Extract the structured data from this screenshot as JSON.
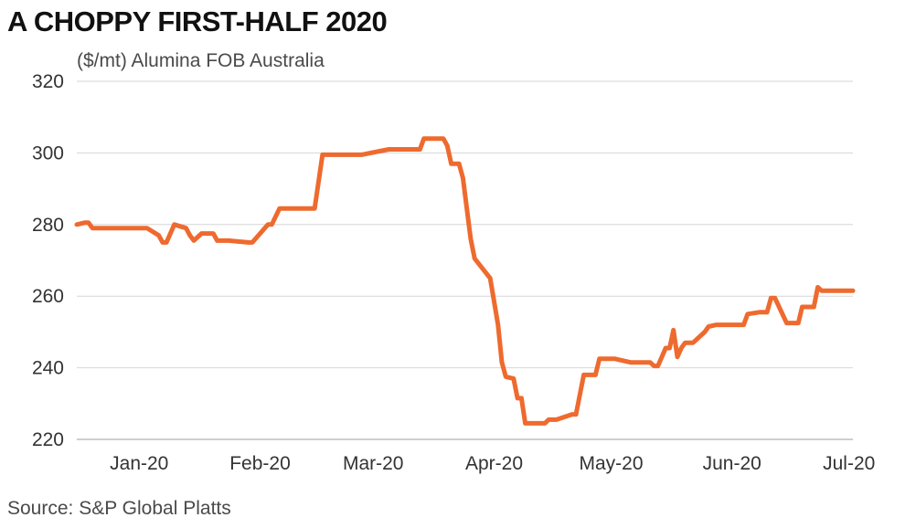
{
  "title": "A CHOPPY FIRST-HALF 2020",
  "source": "Source: S&P Global Platts",
  "chart_data": {
    "type": "line",
    "ylabel": "($/mt) Alumina FOB Australia",
    "ylim": [
      220,
      320
    ],
    "yticks": [
      "220",
      "240",
      "260",
      "280",
      "300",
      "320"
    ],
    "xlim": [
      "2019-12-16",
      "2020-07-02"
    ],
    "xticks": [
      {
        "label": "Jan-20",
        "date": "2020-01-01"
      },
      {
        "label": "Feb-20",
        "date": "2020-02-01"
      },
      {
        "label": "Mar-20",
        "date": "2020-03-01"
      },
      {
        "label": "Apr-20",
        "date": "2020-04-01"
      },
      {
        "label": "May-20",
        "date": "2020-05-01"
      },
      {
        "label": "Jun-20",
        "date": "2020-06-01"
      },
      {
        "label": "Jul-20",
        "date": "2020-07-01"
      }
    ],
    "grid": true,
    "color": "#ee6a2e",
    "series": [
      {
        "x": [
          "2019-12-16",
          "2019-12-18",
          "2019-12-19",
          "2019-12-20",
          "2019-12-23",
          "2019-12-30",
          "2020-01-03",
          "2020-01-06",
          "2020-01-07",
          "2020-01-08",
          "2020-01-10",
          "2020-01-13",
          "2020-01-14",
          "2020-01-15",
          "2020-01-17",
          "2020-01-20",
          "2020-01-21",
          "2020-01-24",
          "2020-01-29",
          "2020-01-30",
          "2020-02-03",
          "2020-02-04",
          "2020-02-06",
          "2020-02-14",
          "2020-02-15",
          "2020-02-17",
          "2020-02-27",
          "2020-03-05",
          "2020-03-07",
          "2020-03-13",
          "2020-03-14",
          "2020-03-18",
          "2020-03-19",
          "2020-03-20",
          "2020-03-21",
          "2020-03-23",
          "2020-03-24",
          "2020-03-26",
          "2020-03-27",
          "2020-03-31",
          "2020-04-02",
          "2020-04-03",
          "2020-04-04",
          "2020-04-06",
          "2020-04-07",
          "2020-04-08",
          "2020-04-09",
          "2020-04-10",
          "2020-04-14",
          "2020-04-15",
          "2020-04-16",
          "2020-04-17",
          "2020-04-21",
          "2020-04-22",
          "2020-04-24",
          "2020-04-27",
          "2020-04-28",
          "2020-04-29",
          "2020-05-01",
          "2020-05-02",
          "2020-05-06",
          "2020-05-11",
          "2020-05-12",
          "2020-05-13",
          "2020-05-15",
          "2020-05-16",
          "2020-05-17",
          "2020-05-18",
          "2020-05-19",
          "2020-05-20",
          "2020-05-21",
          "2020-05-22",
          "2020-05-25",
          "2020-05-26",
          "2020-05-28",
          "2020-05-29",
          "2020-06-01",
          "2020-06-02",
          "2020-06-04",
          "2020-06-05",
          "2020-06-08",
          "2020-06-09",
          "2020-06-10",
          "2020-06-11",
          "2020-06-12",
          "2020-06-15",
          "2020-06-17",
          "2020-06-18",
          "2020-06-19",
          "2020-06-22",
          "2020-06-23",
          "2020-06-24",
          "2020-06-25",
          "2020-06-26",
          "2020-06-29",
          "2020-07-02"
        ],
        "values": [
          280,
          280.5,
          280.5,
          279,
          279,
          279,
          279,
          277,
          275,
          275,
          280,
          279,
          277,
          275.5,
          277.5,
          277.5,
          275.5,
          275.5,
          275,
          275,
          280,
          280,
          284.5,
          284.5,
          284.5,
          299.5,
          299.5,
          301,
          301,
          301,
          304,
          304,
          304,
          302,
          297,
          297,
          293,
          276,
          270.5,
          265,
          252,
          241.5,
          237.5,
          237,
          231.5,
          231.5,
          224.5,
          224.5,
          224.5,
          225.5,
          225.5,
          225.5,
          227,
          227,
          238,
          238,
          242.5,
          242.5,
          242.5,
          242.5,
          241.5,
          241.5,
          240.5,
          240.5,
          245.5,
          245.5,
          250.5,
          243,
          245.5,
          247,
          247,
          247,
          250,
          251.5,
          252,
          252,
          252,
          252,
          252,
          255,
          255.5,
          255.5,
          255.5,
          259.5,
          259.5,
          252.5,
          252.5,
          252.5,
          257,
          257,
          262.5,
          261.5,
          261.5,
          261.5,
          261.5,
          261.5
        ]
      }
    ]
  }
}
